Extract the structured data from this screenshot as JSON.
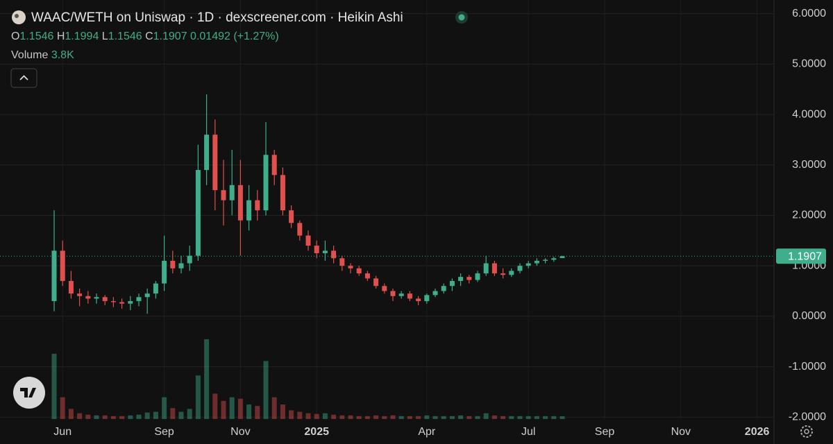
{
  "chart_data": {
    "type": "candlestick",
    "title": "WAAC/WETH on Uniswap · 1D · dexscreener.com · Heikin Ashi",
    "ohlc_labels": {
      "open": "O",
      "high": "H",
      "low": "L",
      "close": "C"
    },
    "change": "0.01492",
    "change_pct": "(+1.27%)",
    "volume_label": "Volume",
    "volume_last": "3.8K",
    "up_color": "#3fae8c",
    "down_color": "#e0504f",
    "grid": true,
    "categories": [
      null,
      "Jun",
      null,
      null,
      null,
      null,
      null,
      null,
      null,
      null,
      null,
      null,
      null,
      "Sep",
      null,
      null,
      null,
      null,
      null,
      null,
      null,
      null,
      "Nov",
      null,
      null,
      null,
      null,
      null,
      null,
      null,
      null,
      "2025",
      null,
      null,
      null,
      null,
      null,
      null,
      null,
      null,
      null,
      null,
      null,
      null,
      "Apr",
      null,
      null,
      null,
      null,
      null,
      null,
      null,
      null,
      null,
      null,
      null,
      "Jul",
      null,
      null,
      null,
      null,
      null,
      null,
      null,
      null,
      "Sep",
      null,
      null,
      null,
      null,
      null,
      null,
      null,
      null,
      "Nov",
      null,
      null,
      null,
      null,
      null,
      null,
      null,
      null,
      "2026",
      null
    ],
    "open": [
      0.3,
      1.3,
      0.7,
      0.45,
      0.4,
      0.35,
      0.38,
      0.3,
      0.28,
      0.25,
      0.3,
      0.38,
      0.45,
      0.65,
      1.1,
      0.95,
      1.05,
      1.2,
      2.9,
      3.6,
      2.5,
      2.3,
      2.6,
      1.9,
      2.3,
      2.1,
      3.2,
      2.8,
      2.1,
      1.85,
      1.6,
      1.4,
      1.25,
      1.3,
      1.15,
      1.0,
      0.95,
      0.85,
      0.75,
      0.6,
      0.5,
      0.4,
      0.45,
      0.35,
      0.3,
      0.42,
      0.5,
      0.6,
      0.7,
      0.78,
      0.72,
      0.85,
      1.05,
      0.85,
      0.82,
      0.9,
      1.0,
      1.05,
      1.1,
      1.12,
      1.1546,
      null,
      null,
      null,
      null,
      null,
      null,
      null,
      null,
      null,
      null,
      null,
      null,
      null,
      null,
      null,
      null,
      null,
      null,
      null,
      null,
      null,
      null,
      null,
      null
    ],
    "high": [
      2.1,
      1.5,
      0.9,
      0.55,
      0.5,
      0.45,
      0.42,
      0.38,
      0.35,
      0.4,
      0.45,
      0.55,
      0.7,
      1.6,
      1.3,
      1.2,
      1.4,
      3.4,
      4.4,
      3.9,
      3.1,
      3.3,
      3.1,
      2.6,
      2.5,
      3.85,
      3.3,
      2.95,
      2.2,
      1.9,
      1.7,
      1.5,
      1.5,
      1.4,
      1.2,
      1.05,
      1.0,
      0.9,
      0.8,
      0.65,
      0.55,
      0.5,
      0.5,
      0.4,
      0.45,
      0.55,
      0.65,
      0.75,
      0.85,
      0.82,
      0.9,
      1.2,
      1.1,
      0.95,
      0.95,
      1.05,
      1.1,
      1.15,
      1.15,
      1.18,
      1.1994,
      null,
      null,
      null,
      null,
      null,
      null,
      null,
      null,
      null,
      null,
      null,
      null,
      null,
      null,
      null,
      null,
      null,
      null,
      null,
      null,
      null,
      null,
      null,
      null
    ],
    "low": [
      0.1,
      0.6,
      0.35,
      0.2,
      0.25,
      0.25,
      0.22,
      0.18,
      0.15,
      0.12,
      0.2,
      0.05,
      0.35,
      0.5,
      0.85,
      0.85,
      0.9,
      1.1,
      2.6,
      2.1,
      1.8,
      2.0,
      1.2,
      1.7,
      1.9,
      2.0,
      2.6,
      2.0,
      1.75,
      1.5,
      1.3,
      1.15,
      1.1,
      1.05,
      0.9,
      0.85,
      0.8,
      0.7,
      0.55,
      0.45,
      0.3,
      0.35,
      0.3,
      0.22,
      0.25,
      0.38,
      0.45,
      0.5,
      0.6,
      0.65,
      0.68,
      0.8,
      0.8,
      0.75,
      0.78,
      0.85,
      0.95,
      1.0,
      1.05,
      1.08,
      1.1546,
      null,
      null,
      null,
      null,
      null,
      null,
      null,
      null,
      null,
      null,
      null,
      null,
      null,
      null,
      null,
      null,
      null,
      null,
      null,
      null,
      null,
      null,
      null,
      null
    ],
    "close": [
      1.3,
      0.7,
      0.45,
      0.4,
      0.35,
      0.38,
      0.3,
      0.28,
      0.25,
      0.3,
      0.38,
      0.45,
      0.65,
      1.1,
      0.95,
      1.05,
      1.2,
      2.9,
      3.6,
      2.5,
      2.3,
      2.6,
      1.9,
      2.3,
      2.1,
      3.2,
      2.8,
      2.1,
      1.85,
      1.6,
      1.4,
      1.25,
      1.3,
      1.15,
      1.0,
      0.95,
      0.85,
      0.75,
      0.6,
      0.5,
      0.4,
      0.45,
      0.35,
      0.3,
      0.42,
      0.5,
      0.6,
      0.7,
      0.78,
      0.72,
      0.85,
      1.05,
      0.85,
      0.82,
      0.9,
      1.0,
      1.05,
      1.1,
      1.12,
      1.15,
      1.1907,
      null,
      null,
      null,
      null,
      null,
      null,
      null,
      null,
      null,
      null,
      null,
      null,
      null,
      null,
      null,
      null,
      null,
      null,
      null,
      null,
      null,
      null,
      null,
      null
    ],
    "volume": [
      90000,
      30000,
      14000,
      8000,
      6000,
      5000,
      5000,
      4000,
      4000,
      5000,
      6000,
      9000,
      10000,
      30000,
      15000,
      10000,
      14000,
      60000,
      110000,
      35000,
      25000,
      30000,
      28000,
      20000,
      18000,
      80000,
      30000,
      20000,
      12000,
      10000,
      8000,
      7000,
      8000,
      6000,
      5000,
      5000,
      4000,
      4000,
      5000,
      4000,
      5000,
      4000,
      4000,
      4000,
      5000,
      4000,
      4000,
      4000,
      5000,
      4000,
      4000,
      8000,
      5000,
      4000,
      4000,
      4000,
      4000,
      4000,
      4000,
      4000,
      3800,
      null,
      null,
      null,
      null,
      null,
      null,
      null,
      null,
      null,
      null,
      null,
      null,
      null,
      null,
      null,
      null,
      null,
      null,
      null,
      null,
      null,
      null,
      null,
      null
    ],
    "ylim": [
      -2.12,
      6.27
    ],
    "yticks": [
      {
        "value": 6,
        "label": "6.0000"
      },
      {
        "value": 5,
        "label": "5.0000"
      },
      {
        "value": 4,
        "label": "4.0000"
      },
      {
        "value": 3,
        "label": "3.0000"
      },
      {
        "value": 2,
        "label": "2.0000"
      },
      {
        "value": 1,
        "label": "1.0000"
      },
      {
        "value": 0,
        "label": "0.0000"
      },
      {
        "value": -1,
        "label": "-1.0000"
      },
      {
        "value": -2,
        "label": "-2.0000"
      }
    ]
  }
}
